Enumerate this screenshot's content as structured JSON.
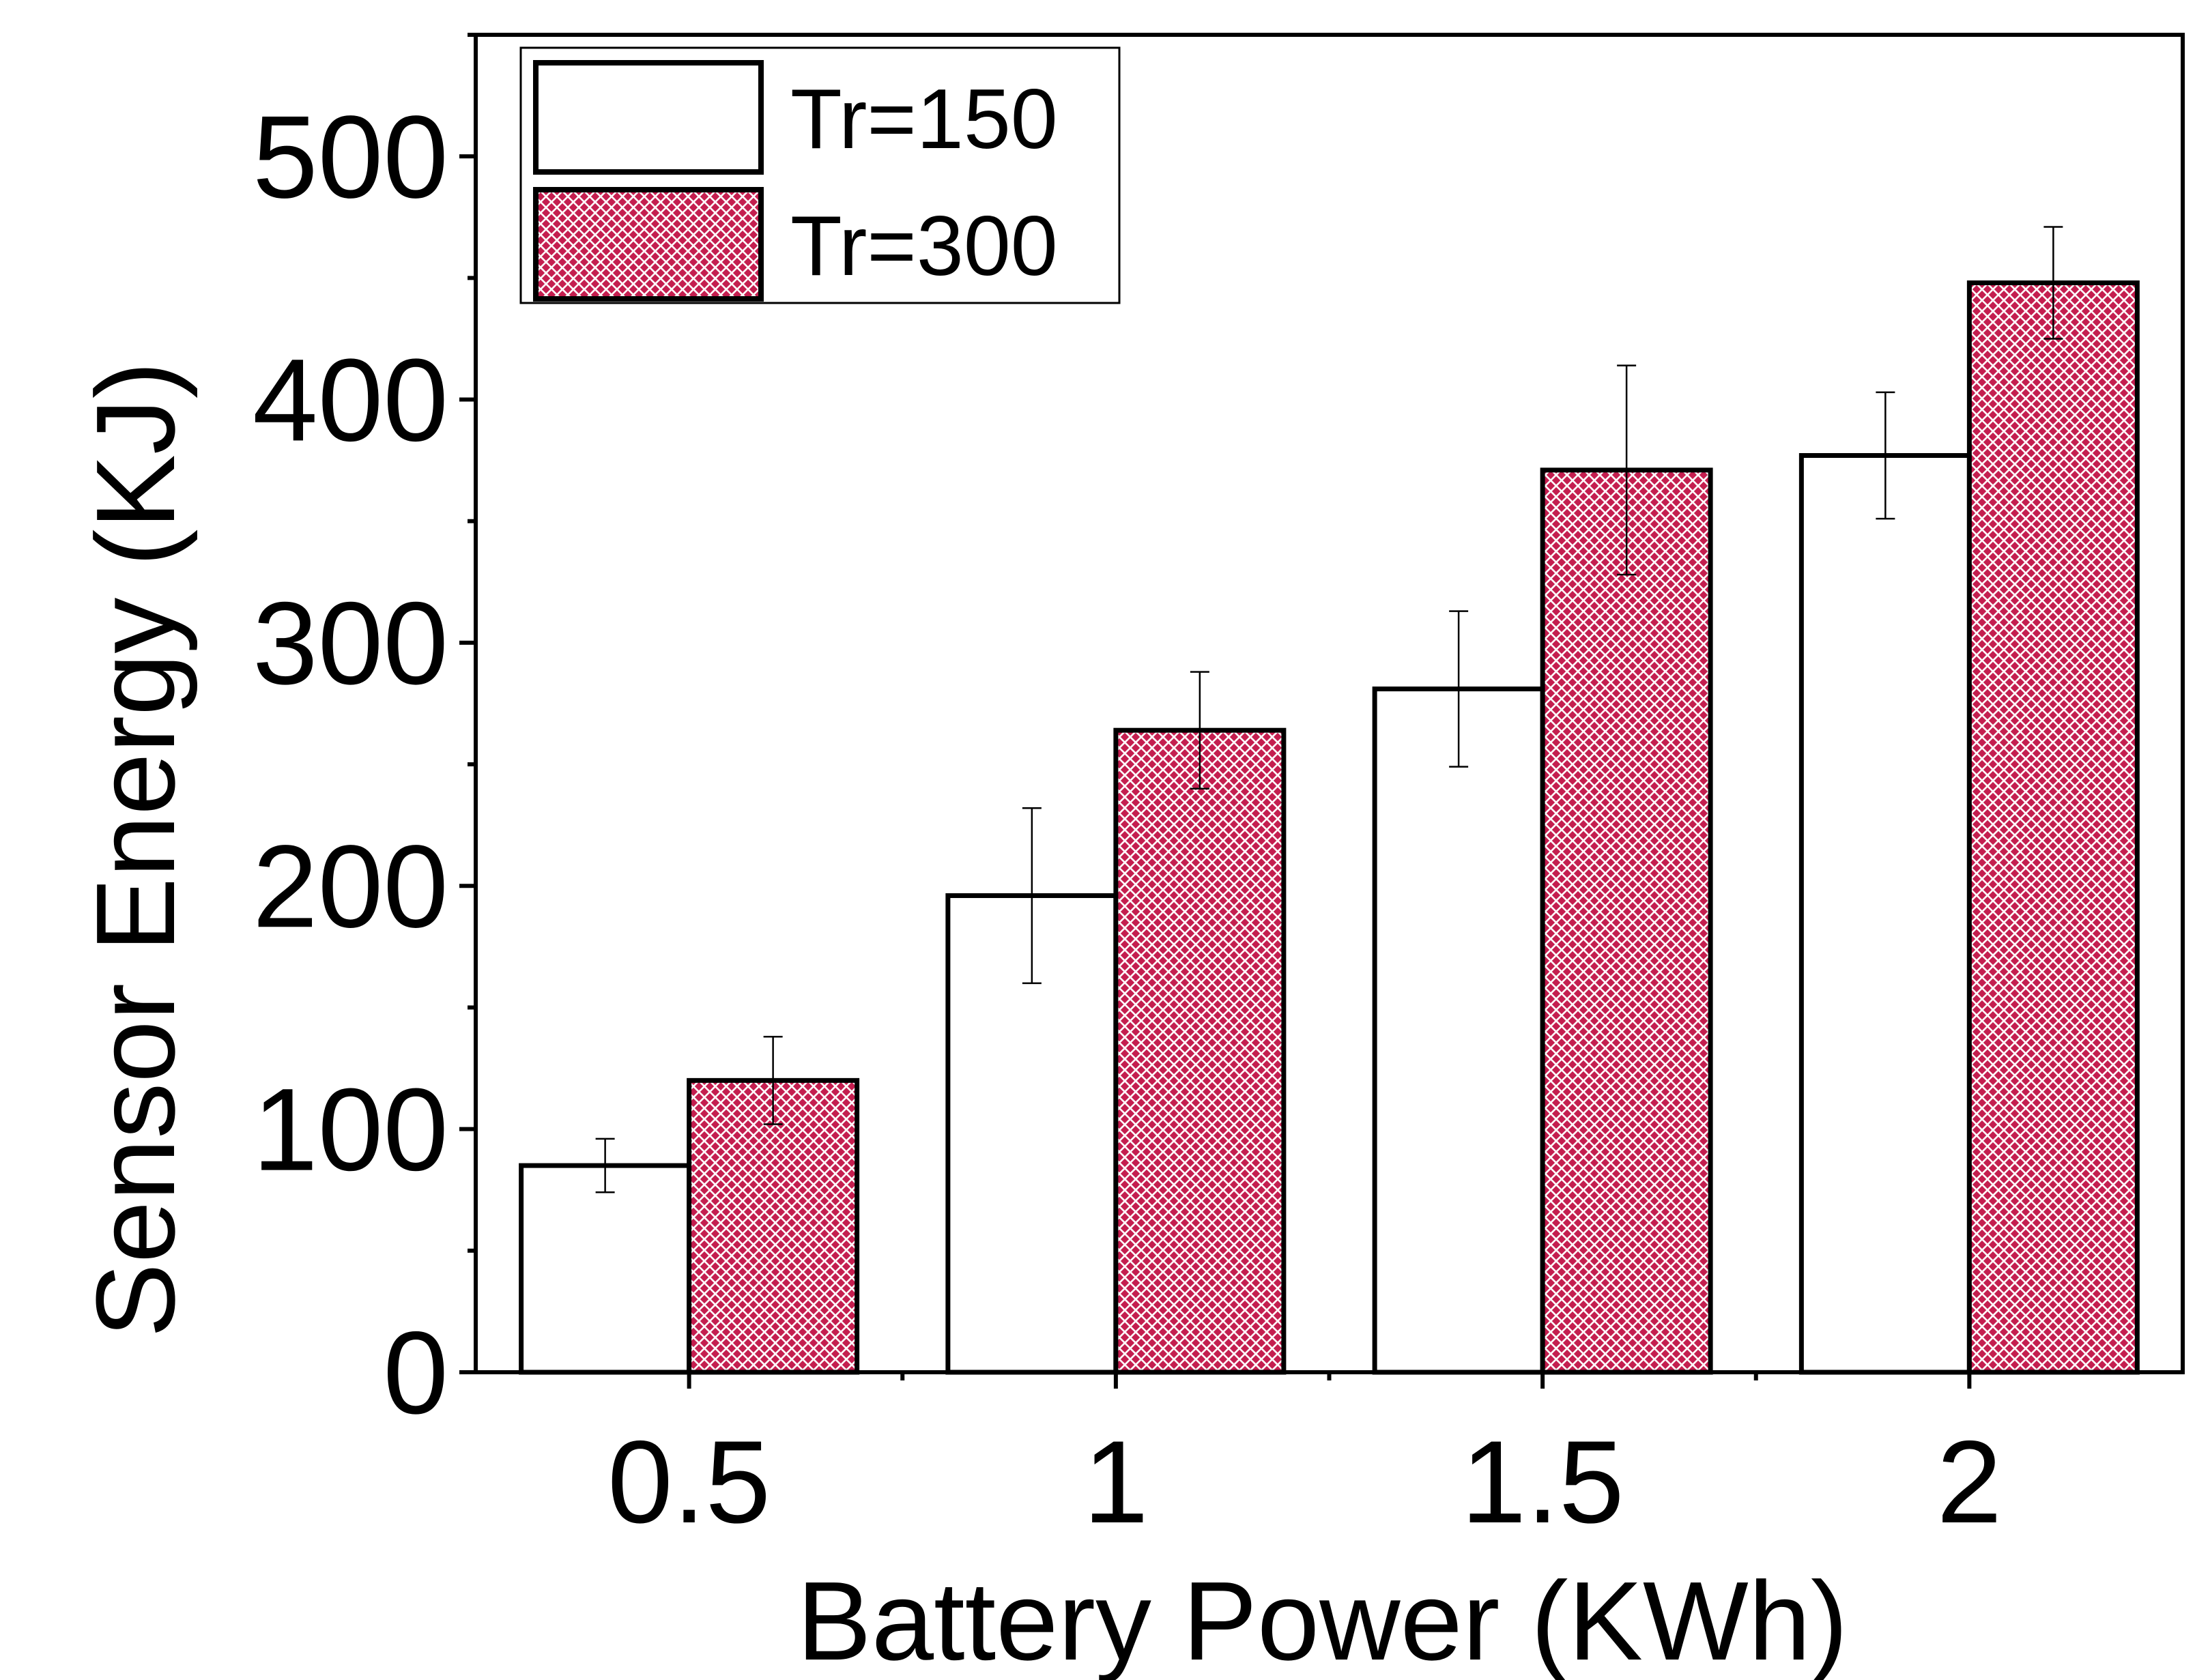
{
  "chart_data": {
    "type": "bar",
    "xlabel": "Battery Power (KWh)",
    "ylabel": "Sensor Energy (KJ)",
    "categories": [
      "0.5",
      "1",
      "1.5",
      "2"
    ],
    "ylim": [
      0,
      550
    ],
    "yticks": [
      "0",
      "100",
      "200",
      "300",
      "400",
      "500"
    ],
    "yminor": [
      50,
      150,
      250,
      350,
      450,
      550
    ],
    "legend_position": "top-left",
    "grid": false,
    "series": [
      {
        "name": "Tr=150",
        "values": [
          85,
          196,
          281,
          377
        ],
        "error": [
          11,
          36,
          32,
          26
        ],
        "fill": "#ffffff",
        "pattern": "none"
      },
      {
        "name": "Tr=300",
        "values": [
          120,
          264,
          371,
          448
        ],
        "error": [
          18,
          24,
          43,
          23
        ],
        "fill": "#c41e4f",
        "pattern": "crosshatch"
      }
    ]
  }
}
